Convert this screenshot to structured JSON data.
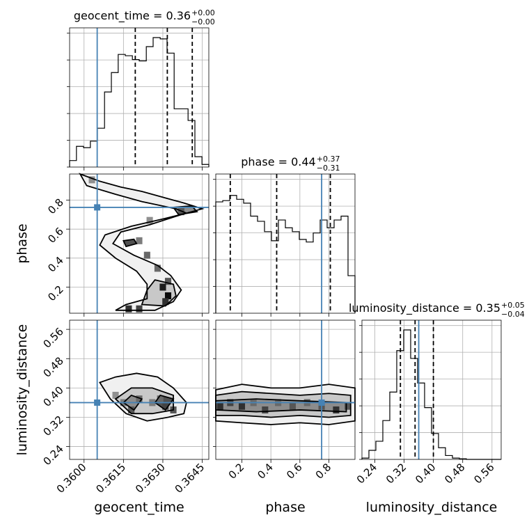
{
  "chart_data": {
    "type": "corner",
    "parameters": [
      "geocent_time",
      "phase",
      "luminosity_distance"
    ],
    "colors": {
      "truth": "#4682b4",
      "hist": "#000000",
      "grid": "#b0b0b0"
    },
    "titles": [
      {
        "param": "geocent_time",
        "text": "geocent_time = 0.36",
        "plus": "+0.00",
        "minus": "−0.00"
      },
      {
        "param": "phase",
        "text": "phase = 0.44",
        "plus": "+0.37",
        "minus": "−0.31"
      },
      {
        "param": "luminosity_distance",
        "text": "luminosity_distance = 0.35",
        "plus": "+0.05",
        "minus": "−0.04"
      }
    ],
    "axes": {
      "geocent_time": {
        "range": [
          0.35945,
          0.36475
        ],
        "ticks": [
          0.36,
          0.3615,
          0.363,
          0.3645
        ],
        "ticklabels": [
          "0.3600",
          "0.3615",
          "0.3630",
          "0.3645"
        ],
        "label": "geocent_time"
      },
      "phase": {
        "range": [
          0.02,
          0.98
        ],
        "ticks": [
          0.2,
          0.4,
          0.6,
          0.8
        ],
        "ticklabels": [
          "0.2",
          "0.4",
          "0.6",
          "0.8"
        ],
        "label": "phase"
      },
      "luminosity_distance": {
        "range": [
          0.205,
          0.585
        ],
        "ticks": [
          0.24,
          0.32,
          0.4,
          0.48,
          0.56
        ],
        "ticklabels": [
          "0.24",
          "0.32",
          "0.40",
          "0.48",
          "0.56"
        ],
        "label": "luminosity_distance"
      }
    },
    "truths": {
      "geocent_time": 0.3605,
      "phase": 0.75,
      "luminosity_distance": 0.36
    },
    "quantile_lines": {
      "geocent_time": [
        0.36195,
        0.36317,
        0.36412
      ],
      "phase": [
        0.12,
        0.44,
        0.81
      ],
      "luminosity_distance": [
        0.31,
        0.35,
        0.4
      ]
    },
    "histograms": {
      "geocent_time": {
        "edges": [
          0.35945,
          0.35971,
          0.35998,
          0.36024,
          0.36051,
          0.36078,
          0.36104,
          0.3613,
          0.36157,
          0.36184,
          0.3621,
          0.36237,
          0.36263,
          0.3629,
          0.36316,
          0.36343,
          0.36369,
          0.36396,
          0.36422,
          0.36449,
          0.36475
        ],
        "counts": [
          0.05,
          0.16,
          0.15,
          0.2,
          0.3,
          0.58,
          0.73,
          0.87,
          0.86,
          0.83,
          0.82,
          0.93,
          1.0,
          0.99,
          0.88,
          0.45,
          0.45,
          0.36,
          0.08,
          0.02
        ]
      },
      "phase": {
        "edges": [
          0.02,
          0.068,
          0.116,
          0.164,
          0.212,
          0.26,
          0.308,
          0.356,
          0.404,
          0.452,
          0.5,
          0.548,
          0.596,
          0.644,
          0.692,
          0.74,
          0.788,
          0.836,
          0.884,
          0.932,
          0.98
        ],
        "counts": [
          0.86,
          0.87,
          0.91,
          0.88,
          0.85,
          0.75,
          0.71,
          0.63,
          0.56,
          0.72,
          0.66,
          0.63,
          0.57,
          0.55,
          0.62,
          0.72,
          0.66,
          0.72,
          0.75,
          0.29
        ]
      },
      "luminosity_distance": {
        "edges": [
          0.205,
          0.224,
          0.243,
          0.262,
          0.281,
          0.3,
          0.319,
          0.338,
          0.357,
          0.376,
          0.395,
          0.414,
          0.433,
          0.452,
          0.471,
          0.49,
          0.509,
          0.528,
          0.547,
          0.566,
          0.585
        ],
        "counts": [
          0.01,
          0.07,
          0.14,
          0.3,
          0.52,
          0.84,
          1.0,
          0.78,
          0.59,
          0.4,
          0.2,
          0.09,
          0.03,
          0.01,
          0.005,
          0.0,
          0.0,
          0.0,
          0.0,
          0.0
        ]
      }
    },
    "density_cells": {
      "phase_vs_geocent_time": [
        {
          "x": 0.3621,
          "y": 0.52,
          "w": 0.4
        },
        {
          "x": 0.3624,
          "y": 0.42,
          "w": 0.5
        },
        {
          "x": 0.3628,
          "y": 0.33,
          "w": 0.5
        },
        {
          "x": 0.3632,
          "y": 0.24,
          "w": 0.6
        },
        {
          "x": 0.363,
          "y": 0.2,
          "w": 0.9
        },
        {
          "x": 0.3632,
          "y": 0.14,
          "w": 1.0
        },
        {
          "x": 0.3631,
          "y": 0.1,
          "w": 0.8
        },
        {
          "x": 0.3617,
          "y": 0.05,
          "w": 0.8
        },
        {
          "x": 0.3621,
          "y": 0.05,
          "w": 0.7
        },
        {
          "x": 0.3637,
          "y": 0.72,
          "w": 0.6
        },
        {
          "x": 0.3625,
          "y": 0.66,
          "w": 0.3
        },
        {
          "x": 0.3603,
          "y": 0.94,
          "w": 0.3
        }
      ],
      "ld_vs_geocent_time": [
        {
          "x": 0.3615,
          "y": 0.36,
          "w": 0.4
        },
        {
          "x": 0.3618,
          "y": 0.34,
          "w": 0.6
        },
        {
          "x": 0.3621,
          "y": 0.37,
          "w": 0.5
        },
        {
          "x": 0.3626,
          "y": 0.36,
          "w": 0.4
        },
        {
          "x": 0.3629,
          "y": 0.37,
          "w": 0.5
        },
        {
          "x": 0.3631,
          "y": 0.35,
          "w": 0.7
        },
        {
          "x": 0.3634,
          "y": 0.34,
          "w": 0.6
        },
        {
          "x": 0.3612,
          "y": 0.38,
          "w": 0.3
        }
      ],
      "ld_vs_phase": [
        {
          "x": 0.05,
          "y": 0.35,
          "w": 0.8
        },
        {
          "x": 0.12,
          "y": 0.36,
          "w": 0.7
        },
        {
          "x": 0.2,
          "y": 0.35,
          "w": 0.8
        },
        {
          "x": 0.28,
          "y": 0.36,
          "w": 0.5
        },
        {
          "x": 0.36,
          "y": 0.34,
          "w": 0.7
        },
        {
          "x": 0.45,
          "y": 0.36,
          "w": 0.5
        },
        {
          "x": 0.55,
          "y": 0.35,
          "w": 0.6
        },
        {
          "x": 0.65,
          "y": 0.36,
          "w": 0.5
        },
        {
          "x": 0.75,
          "y": 0.35,
          "w": 0.6
        },
        {
          "x": 0.85,
          "y": 0.34,
          "w": 0.8
        },
        {
          "x": 0.93,
          "y": 0.35,
          "w": 0.6
        }
      ]
    },
    "contours": {
      "phase_vs_geocent_time": [
        [
          [
            0.35985,
            0.98
          ],
          [
            0.3606,
            0.93
          ],
          [
            0.3614,
            0.89
          ],
          [
            0.3622,
            0.86
          ],
          [
            0.363,
            0.82
          ],
          [
            0.3638,
            0.78
          ],
          [
            0.3645,
            0.74
          ],
          [
            0.3637,
            0.7
          ],
          [
            0.3625,
            0.63
          ],
          [
            0.3614,
            0.58
          ],
          [
            0.3611,
            0.5
          ],
          [
            0.3619,
            0.42
          ],
          [
            0.3628,
            0.35
          ],
          [
            0.3633,
            0.28
          ],
          [
            0.3637,
            0.18
          ],
          [
            0.3634,
            0.1
          ],
          [
            0.3627,
            0.04
          ],
          [
            0.3612,
            0.04
          ],
          [
            0.3616,
            0.08
          ],
          [
            0.3624,
            0.12
          ],
          [
            0.3624,
            0.22
          ],
          [
            0.362,
            0.31
          ],
          [
            0.3612,
            0.4
          ],
          [
            0.3606,
            0.49
          ],
          [
            0.3608,
            0.56
          ],
          [
            0.3618,
            0.62
          ],
          [
            0.363,
            0.67
          ],
          [
            0.3639,
            0.71
          ],
          [
            0.3635,
            0.74
          ],
          [
            0.3622,
            0.79
          ],
          [
            0.3612,
            0.84
          ],
          [
            0.3601,
            0.9
          ],
          [
            0.35985,
            0.98
          ]
        ],
        [
          [
            0.3622,
            0.08
          ],
          [
            0.3631,
            0.07
          ],
          [
            0.3635,
            0.14
          ],
          [
            0.3634,
            0.22
          ],
          [
            0.3627,
            0.25
          ],
          [
            0.3624,
            0.18
          ],
          [
            0.3622,
            0.08
          ]
        ],
        [
          [
            0.3636,
            0.7
          ],
          [
            0.3643,
            0.72
          ],
          [
            0.3641,
            0.76
          ],
          [
            0.3634,
            0.75
          ],
          [
            0.3636,
            0.7
          ]
        ],
        [
          [
            0.3616,
            0.48
          ],
          [
            0.362,
            0.5
          ],
          [
            0.3619,
            0.53
          ],
          [
            0.3615,
            0.52
          ],
          [
            0.3616,
            0.48
          ]
        ]
      ],
      "ld_vs_geocent_time": [
        [
          [
            0.3606,
            0.415
          ],
          [
            0.361,
            0.37
          ],
          [
            0.3616,
            0.33
          ],
          [
            0.3624,
            0.31
          ],
          [
            0.3632,
            0.32
          ],
          [
            0.3638,
            0.33
          ],
          [
            0.3639,
            0.36
          ],
          [
            0.3634,
            0.4
          ],
          [
            0.3628,
            0.43
          ],
          [
            0.362,
            0.44
          ],
          [
            0.3612,
            0.43
          ],
          [
            0.3606,
            0.415
          ]
        ],
        [
          [
            0.3612,
            0.37
          ],
          [
            0.3618,
            0.33
          ],
          [
            0.3626,
            0.33
          ],
          [
            0.3634,
            0.34
          ],
          [
            0.3634,
            0.38
          ],
          [
            0.3626,
            0.4
          ],
          [
            0.3618,
            0.4
          ],
          [
            0.3612,
            0.37
          ]
        ],
        [
          [
            0.3615,
            0.36
          ],
          [
            0.3619,
            0.34
          ],
          [
            0.3622,
            0.37
          ],
          [
            0.3618,
            0.38
          ],
          [
            0.3615,
            0.36
          ]
        ],
        [
          [
            0.3627,
            0.36
          ],
          [
            0.3631,
            0.34
          ],
          [
            0.3634,
            0.37
          ],
          [
            0.3629,
            0.38
          ],
          [
            0.3627,
            0.36
          ]
        ]
      ],
      "ld_vs_phase": [
        [
          [
            0.02,
            0.395
          ],
          [
            0.2,
            0.41
          ],
          [
            0.4,
            0.4
          ],
          [
            0.6,
            0.4
          ],
          [
            0.8,
            0.41
          ],
          [
            0.98,
            0.4
          ],
          [
            0.98,
            0.31
          ],
          [
            0.8,
            0.3
          ],
          [
            0.6,
            0.305
          ],
          [
            0.4,
            0.3
          ],
          [
            0.2,
            0.305
          ],
          [
            0.02,
            0.31
          ]
        ],
        [
          [
            0.02,
            0.38
          ],
          [
            0.2,
            0.39
          ],
          [
            0.4,
            0.385
          ],
          [
            0.6,
            0.38
          ],
          [
            0.8,
            0.385
          ],
          [
            0.95,
            0.38
          ],
          [
            0.95,
            0.325
          ],
          [
            0.8,
            0.32
          ],
          [
            0.6,
            0.325
          ],
          [
            0.4,
            0.32
          ],
          [
            0.2,
            0.325
          ],
          [
            0.02,
            0.325
          ]
        ],
        [
          [
            0.02,
            0.365
          ],
          [
            0.3,
            0.37
          ],
          [
            0.6,
            0.365
          ],
          [
            0.92,
            0.36
          ],
          [
            0.92,
            0.335
          ],
          [
            0.6,
            0.34
          ],
          [
            0.3,
            0.335
          ],
          [
            0.02,
            0.34
          ]
        ]
      ]
    }
  }
}
